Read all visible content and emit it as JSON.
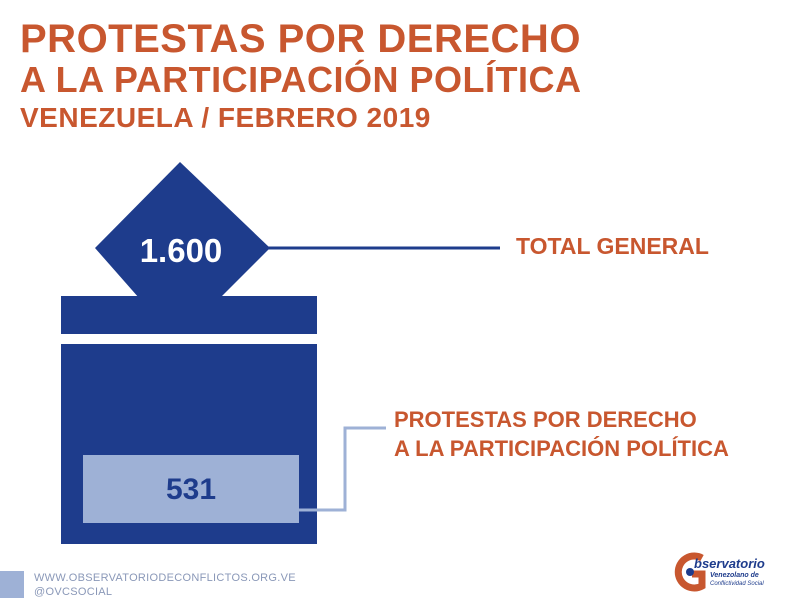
{
  "header": {
    "title_line1": "PROTESTAS POR DERECHO",
    "title_line2": "A LA PARTICIPACIÓN POLÍTICA",
    "subtitle": "VENEZUELA / FEBRERO 2019"
  },
  "chart_data": {
    "type": "infographic",
    "total": {
      "value": 1600,
      "display": "1.600",
      "label": "TOTAL GENERAL"
    },
    "subset": {
      "value": 531,
      "display": "531",
      "label_line1": "PROTESTAS POR DERECHO",
      "label_line2": "A LA PARTICIPACIÓN POLÍTICA"
    }
  },
  "footer": {
    "website": "WWW.OBSERVATORIODECONFLICTOS.ORG.VE",
    "handle": "@OVCSOCIAL"
  },
  "logo": {
    "word": "bservatorio",
    "line2": "Venezolano de",
    "line3": "Conflictividad Social"
  },
  "colors": {
    "accent": "#c8572f",
    "navy": "#1e3c8c",
    "light_blue": "#9eb1d6"
  }
}
